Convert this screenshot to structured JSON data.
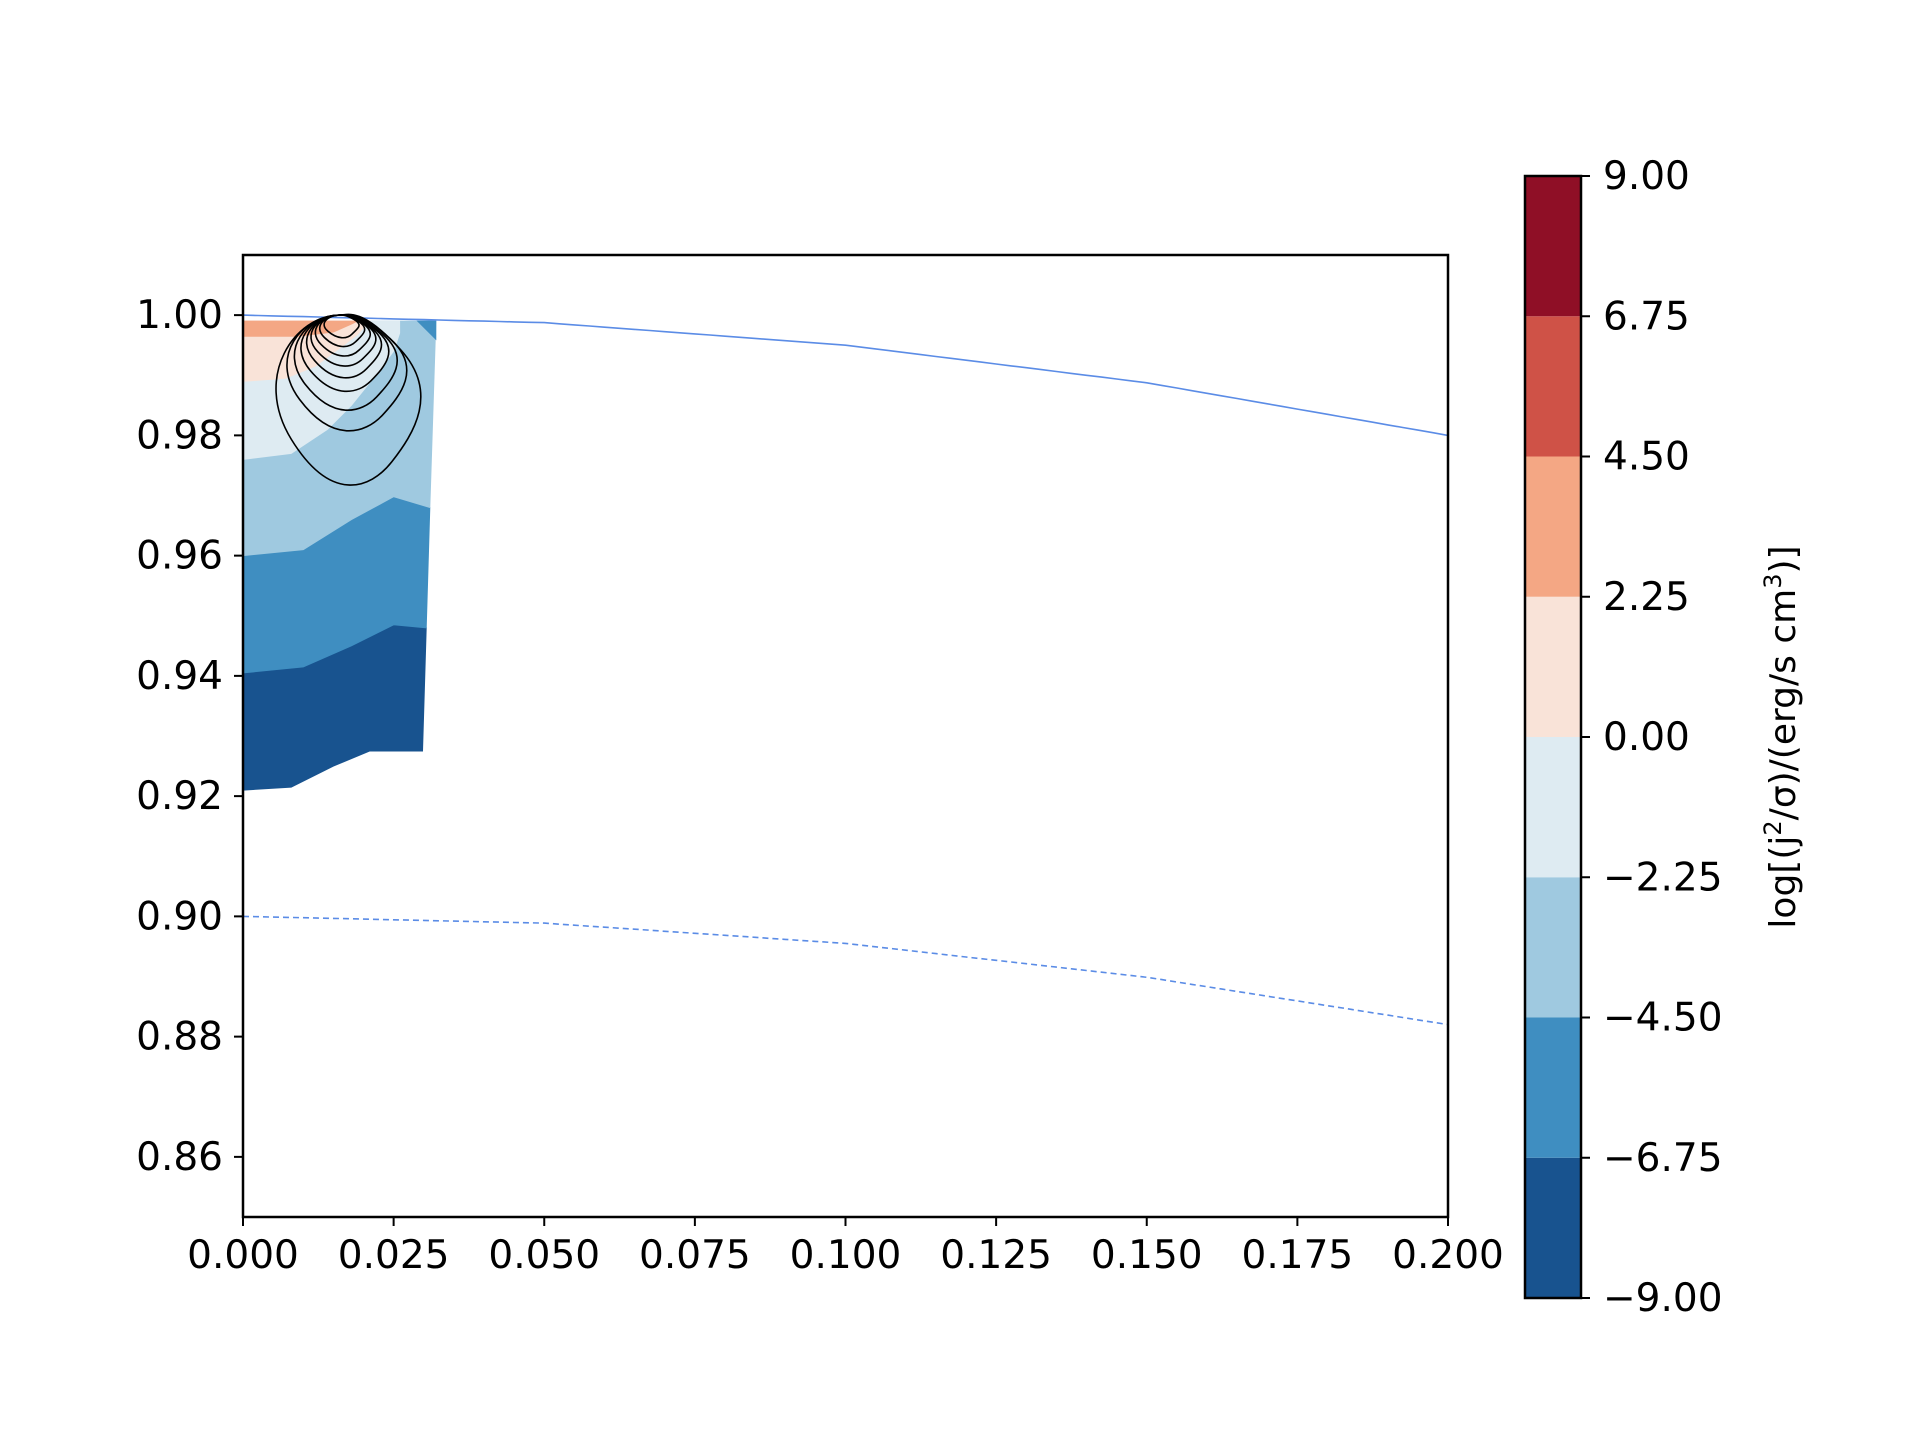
{
  "chart_data": {
    "type": "contour",
    "title": "",
    "xlabel": "",
    "ylabel": "",
    "xlim": [
      0.0,
      0.2
    ],
    "ylim": [
      0.85,
      1.01
    ],
    "x_ticks": [
      "0.000",
      "0.025",
      "0.050",
      "0.075",
      "0.100",
      "0.125",
      "0.150",
      "0.175",
      "0.200"
    ],
    "y_ticks": [
      "0.86",
      "0.88",
      "0.90",
      "0.92",
      "0.94",
      "0.96",
      "0.98",
      "1.00"
    ],
    "grid": false,
    "colorbar": {
      "label_prefix": "log[(j",
      "label_sup1": "2",
      "label_mid": "/σ)/(erg/s cm",
      "label_sup2": "3",
      "label_suffix": ")]",
      "levels": [
        -9.0,
        -6.75,
        -4.5,
        -2.25,
        0.0,
        2.25,
        4.5,
        6.75,
        9.0
      ],
      "tick_labels": [
        "−9.00",
        "−6.75",
        "−4.50",
        "−2.25",
        "0.00",
        "2.25",
        "4.50",
        "6.75",
        "9.00"
      ],
      "colors": [
        "#18538f",
        "#3f8ec1",
        "#9fc9e0",
        "#deebf2",
        "#f9e3d8",
        "#f4a784",
        "#cf5247",
        "#8f0f26"
      ]
    },
    "boundary_curves": [
      {
        "style": "solid",
        "color": "#5b8ce6",
        "x": [
          0.0,
          0.05,
          0.1,
          0.15,
          0.2
        ],
        "y": [
          1.0,
          0.99875,
          0.995,
          0.98875,
          0.98
        ]
      },
      {
        "style": "dashed",
        "color": "#5b8ce6",
        "x": [
          0.0,
          0.05,
          0.1,
          0.15,
          0.2
        ],
        "y": [
          0.9,
          0.898875,
          0.8955,
          0.889875,
          0.882
        ]
      }
    ],
    "filled_regions": [
      {
        "level": "-9.00 to -6.75",
        "color": "#18538f",
        "points": [
          [
            0.0,
            0.921
          ],
          [
            0.008,
            0.9215
          ],
          [
            0.015,
            0.925
          ],
          [
            0.021,
            0.9275
          ],
          [
            0.0298,
            0.9275
          ],
          [
            0.0304,
            0.948
          ],
          [
            0.025,
            0.9485
          ],
          [
            0.018,
            0.945
          ],
          [
            0.01,
            0.9415
          ],
          [
            0.0,
            0.9405
          ]
        ]
      },
      {
        "level": "-6.75 to -4.50",
        "color": "#3f8ec1",
        "points": [
          [
            0.0,
            0.9405
          ],
          [
            0.01,
            0.9415
          ],
          [
            0.018,
            0.945
          ],
          [
            0.025,
            0.9485
          ],
          [
            0.0304,
            0.948
          ],
          [
            0.031,
            0.968
          ],
          [
            0.025,
            0.9698
          ],
          [
            0.018,
            0.966
          ],
          [
            0.01,
            0.961
          ],
          [
            0.0,
            0.96
          ]
        ]
      },
      {
        "level": "-4.50 to -2.25",
        "color": "#9fc9e0",
        "points": [
          [
            0.0,
            0.96
          ],
          [
            0.01,
            0.961
          ],
          [
            0.018,
            0.966
          ],
          [
            0.025,
            0.9698
          ],
          [
            0.031,
            0.968
          ],
          [
            0.032,
            0.999
          ],
          [
            0.0,
            0.999
          ]
        ]
      },
      {
        "level": "-2.25 to 0.00",
        "color": "#deebf2",
        "points": [
          [
            0.0,
            0.976
          ],
          [
            0.008,
            0.977
          ],
          [
            0.014,
            0.981
          ],
          [
            0.018,
            0.985
          ],
          [
            0.022,
            0.99
          ],
          [
            0.025,
            0.994
          ],
          [
            0.026,
            0.997
          ],
          [
            0.026,
            0.999
          ],
          [
            0.0,
            0.999
          ]
        ]
      },
      {
        "level": "0.00 to 2.25",
        "color": "#f9e3d8",
        "points": [
          [
            0.0,
            0.989
          ],
          [
            0.007,
            0.9895
          ],
          [
            0.012,
            0.9915
          ],
          [
            0.016,
            0.9945
          ],
          [
            0.019,
            0.9968
          ],
          [
            0.021,
            0.999
          ],
          [
            0.0,
            0.999
          ]
        ]
      },
      {
        "level": "2.25 to 4.50",
        "color": "#f4a784",
        "points": [
          [
            0.0,
            0.9965
          ],
          [
            0.009,
            0.9965
          ],
          [
            0.015,
            0.9972
          ],
          [
            0.018,
            0.9985
          ],
          [
            0.019,
            0.999
          ],
          [
            0.0,
            0.999
          ]
        ]
      },
      {
        "level": "-6.75 to -4.50",
        "color": "#3f8ec1",
        "points": [
          [
            0.029,
            0.999
          ],
          [
            0.032,
            0.999
          ],
          [
            0.032,
            0.996
          ]
        ]
      }
    ],
    "contour_center": [
      0.016,
      1.0
    ],
    "contour_lines": [
      {
        "x_half_width": 0.0035,
        "y_min": 0.9963
      },
      {
        "x_half_width": 0.0045,
        "y_min": 0.9948
      },
      {
        "x_half_width": 0.0055,
        "y_min": 0.9932
      },
      {
        "x_half_width": 0.0065,
        "y_min": 0.9915
      },
      {
        "x_half_width": 0.0075,
        "y_min": 0.9895
      },
      {
        "x_half_width": 0.0088,
        "y_min": 0.9872
      },
      {
        "x_half_width": 0.0103,
        "y_min": 0.984
      },
      {
        "x_half_width": 0.012,
        "y_min": 0.9805
      },
      {
        "x_half_width": 0.0145,
        "y_min": 0.9713
      }
    ]
  }
}
